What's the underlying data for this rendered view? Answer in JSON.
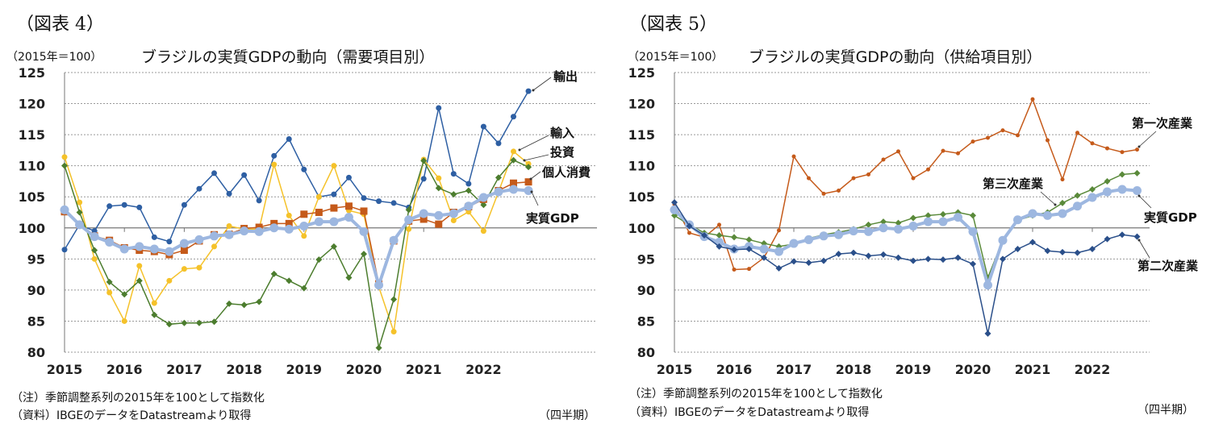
{
  "chart_data": [
    {
      "type": "line",
      "figure_label": "（図表 4）",
      "unit_label": "（2015年＝100）",
      "title": "ブラジルの実質GDPの動向（需要項目別）",
      "notes": [
        "（注）季節調整系列の2015年を100として指数化",
        "（資料）IBGEのデータをDatastreamより取得"
      ],
      "xlabel": "（四半期）",
      "ylim": [
        80,
        125
      ],
      "yticks": [
        "80",
        "85",
        "90",
        "95",
        "100",
        "105",
        "110",
        "115",
        "120",
        "125"
      ],
      "xticks": [
        "2015",
        "2016",
        "2017",
        "2018",
        "2019",
        "2020",
        "2021",
        "2022"
      ],
      "x_start": "2015Q1",
      "x_end": "2022Q4",
      "grid": true,
      "series": [
        {
          "name": "輸出",
          "color": "#2e5fa3",
          "marker": "circle",
          "values": [
            96.5,
            100.5,
            99.5,
            103.5,
            103.7,
            103.3,
            98.5,
            97.8,
            103.7,
            106.3,
            108.8,
            105.5,
            108.5,
            104.4,
            111.6,
            114.3,
            109.4,
            105.0,
            105.4,
            108.1,
            104.8,
            104.3,
            104.0,
            103.3,
            107.9,
            119.3,
            108.7,
            107.1,
            116.3,
            113.6,
            117.9,
            122.0
          ]
        },
        {
          "name": "輸入",
          "color": "#f5c22a",
          "marker": "circle",
          "values": [
            111.4,
            104.1,
            95.0,
            89.6,
            85.0,
            93.9,
            87.9,
            91.5,
            93.4,
            93.6,
            97.0,
            100.3,
            99.8,
            99.8,
            110.2,
            102.0,
            98.7,
            105.0,
            110.0,
            102.8,
            102.2,
            90.5,
            83.3,
            99.8,
            111.0,
            108.0,
            101.2,
            102.6,
            99.5,
            105.8,
            112.3,
            110.3
          ]
        },
        {
          "name": "投資",
          "color": "#4c7d2e",
          "marker": "diamond",
          "values": [
            110.0,
            102.5,
            96.4,
            91.3,
            89.3,
            91.5,
            86.0,
            84.5,
            84.7,
            84.7,
            84.9,
            87.8,
            87.6,
            88.1,
            92.6,
            91.5,
            90.3,
            94.9,
            97.0,
            92.0,
            95.8,
            80.7,
            88.5,
            102.9,
            110.8,
            106.4,
            105.4,
            106.0,
            103.7,
            108.1,
            110.9,
            109.8
          ]
        },
        {
          "name": "個人消費",
          "color": "#c55a1a",
          "marker": "square",
          "values": [
            102.6,
            100.5,
            98.7,
            98.0,
            96.8,
            96.4,
            96.2,
            95.7,
            96.4,
            97.9,
            98.9,
            99.0,
            99.9,
            100.1,
            100.7,
            100.7,
            102.2,
            102.5,
            103.2,
            103.5,
            102.7,
            91.0,
            97.9,
            101.1,
            101.4,
            100.6,
            102.5,
            103.4,
            104.6,
            106.0,
            107.2,
            107.4
          ]
        },
        {
          "name": "実質GDP",
          "color": "#9db7e0",
          "marker": "bigcircle",
          "values": [
            102.9,
            100.5,
            98.6,
            97.7,
            96.6,
            97.0,
            96.6,
            96.2,
            97.5,
            98.1,
            98.7,
            98.9,
            99.5,
            99.4,
            100.0,
            99.8,
            100.3,
            101.0,
            101.0,
            101.7,
            99.4,
            90.8,
            98.0,
            101.3,
            102.3,
            102.0,
            102.3,
            103.5,
            104.9,
            105.8,
            106.2,
            106.0
          ]
        }
      ]
    },
    {
      "type": "line",
      "figure_label": "（図表 5）",
      "unit_label": "（2015年＝100）",
      "title": "ブラジルの実質GDPの動向（供給項目別）",
      "notes": [
        "（注）季節調整系列の2015年を100として指数化",
        "（資料）IBGEのデータをDatastreamより取得"
      ],
      "xlabel": "（四半期）",
      "ylim": [
        80,
        125
      ],
      "yticks": [
        "80",
        "85",
        "90",
        "95",
        "100",
        "105",
        "110",
        "115",
        "120",
        "125"
      ],
      "xticks": [
        "2015",
        "2016",
        "2017",
        "2018",
        "2019",
        "2020",
        "2021",
        "2022"
      ],
      "x_start": "2015Q1",
      "x_end": "2022Q4",
      "grid": true,
      "series": [
        {
          "name": "第一次産業",
          "color": "#c55a1a",
          "marker": "dot",
          "values": [
            103.8,
            99.2,
            98.5,
            100.5,
            93.3,
            93.4,
            95.2,
            99.6,
            111.5,
            108.0,
            105.5,
            106.0,
            108.0,
            108.6,
            111.0,
            112.3,
            108.0,
            109.4,
            112.4,
            112.0,
            113.9,
            114.5,
            115.7,
            114.9,
            120.7,
            114.1,
            107.8,
            115.3,
            113.6,
            112.8,
            112.2,
            112.6
          ]
        },
        {
          "name": "第三次産業",
          "color": "#5a8a3a",
          "marker": "diamond",
          "values": [
            102.0,
            100.5,
            99.2,
            98.8,
            98.5,
            98.1,
            97.5,
            97.0,
            97.4,
            98.3,
            98.9,
            99.3,
            99.8,
            100.5,
            101.0,
            100.8,
            101.6,
            102.0,
            102.2,
            102.5,
            102.0,
            92.0,
            98.0,
            101.2,
            102.0,
            102.5,
            104.0,
            105.2,
            106.2,
            107.5,
            108.6,
            108.8
          ]
        },
        {
          "name": "実質GDP",
          "color": "#9db7e0",
          "marker": "bigcircle",
          "values": [
            102.9,
            100.5,
            98.6,
            97.7,
            96.6,
            97.0,
            96.6,
            96.2,
            97.5,
            98.1,
            98.7,
            98.9,
            99.5,
            99.4,
            100.0,
            99.8,
            100.3,
            101.0,
            101.0,
            101.7,
            99.4,
            90.8,
            98.0,
            101.3,
            102.3,
            102.0,
            102.3,
            103.5,
            104.9,
            105.8,
            106.2,
            106.0
          ]
        },
        {
          "name": "第二次産業",
          "color": "#2a4f8a",
          "marker": "diamond",
          "values": [
            104.1,
            100.3,
            98.8,
            97.0,
            96.5,
            96.6,
            95.2,
            93.5,
            94.6,
            94.4,
            94.7,
            95.8,
            96.0,
            95.5,
            95.7,
            95.2,
            94.7,
            95.0,
            94.9,
            95.2,
            94.2,
            83.0,
            95.0,
            96.6,
            97.7,
            96.3,
            96.1,
            96.0,
            96.6,
            98.2,
            98.9,
            98.6
          ]
        }
      ]
    }
  ]
}
